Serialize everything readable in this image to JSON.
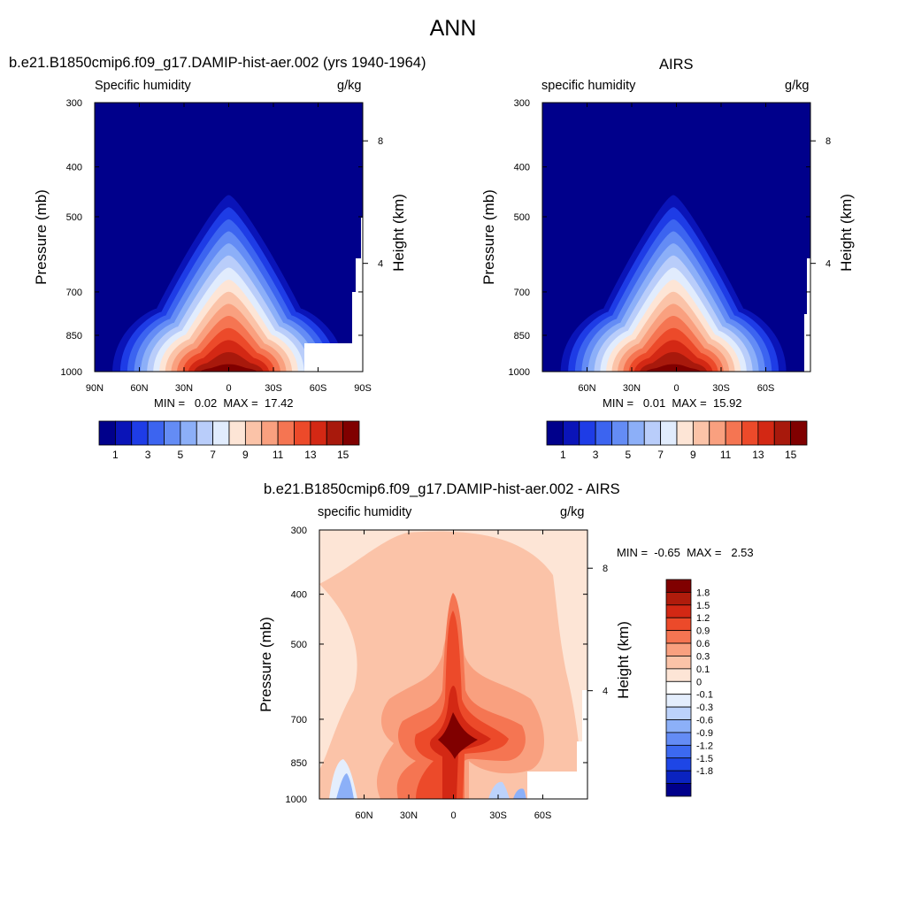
{
  "title": "ANN",
  "panels": [
    {
      "title": "b.e21.B1850cmip6.f09_g17.DAMIP-hist-aer.002 (yrs 1940-1964)",
      "left_label": "Specific humidity",
      "right_label": "g/kg",
      "minmax": "MIN =   0.02  MAX =  17.42"
    },
    {
      "title": "AIRS",
      "left_label": "specific humidity",
      "right_label": "g/kg",
      "minmax": "MIN =   0.01  MAX =  15.92"
    },
    {
      "title": "b.e21.B1850cmip6.f09_g17.DAMIP-hist-aer.002 - AIRS",
      "left_label": "specific humidity",
      "right_label": "g/kg",
      "minmax": "MIN =  -0.65  MAX =   2.53"
    }
  ],
  "axes": {
    "ylabel": "Pressure (mb)",
    "y2label": "Height (km)",
    "pressure_ticks": [
      "300",
      "400",
      "500",
      "700",
      "850",
      "1000"
    ],
    "height_ticks": [
      "8",
      "4"
    ],
    "lat_ticks_full": [
      "90N",
      "60N",
      "30N",
      "0",
      "30S",
      "60S",
      "90S"
    ],
    "lat_ticks_inner": [
      "60N",
      "30N",
      "0",
      "30S",
      "60S"
    ]
  },
  "colorbars": {
    "abs_colors": [
      "#00008b",
      "#0a14b8",
      "#1e3ce6",
      "#3c64f0",
      "#648cf5",
      "#8caff8",
      "#b9cdfa",
      "#e1ecfd",
      "#fde5d6",
      "#fbc3a8",
      "#f9a07f",
      "#f57552",
      "#ec4a2a",
      "#d32814",
      "#a8190c",
      "#800000"
    ],
    "abs_labels": [
      "1",
      "3",
      "5",
      "7",
      "9",
      "11",
      "13",
      "15"
    ],
    "diff_colors": [
      "#00008b",
      "#0a23c0",
      "#1e46e6",
      "#3c69f0",
      "#648cf5",
      "#8cb0f8",
      "#bcd2fb",
      "#e4eefd",
      "#ffffff",
      "#fde5d6",
      "#fbc3a8",
      "#f9a07f",
      "#f57552",
      "#ec4a2a",
      "#d32814",
      "#b01c0c",
      "#800000"
    ],
    "diff_labels": [
      "1.8",
      "1.5",
      "1.2",
      "0.9",
      "0.6",
      "0.3",
      "0.1",
      "0",
      "-0.1",
      "-0.3",
      "-0.6",
      "-0.9",
      "-1.2",
      "-1.5",
      "-1.8"
    ]
  },
  "chart_data": [
    {
      "type": "heatmap",
      "title": "b.e21.B1850cmip6.f09_g17.DAMIP-hist-aer.002 (yrs 1940-1964)",
      "variable": "Specific humidity",
      "units": "g/kg",
      "x_axis": "latitude",
      "xlim": [
        "90N",
        "90S"
      ],
      "y_axis": "pressure (mb)",
      "ylim": [
        1000,
        300
      ],
      "y_scale": "log",
      "contour_levels": [
        1,
        2,
        3,
        4,
        5,
        6,
        7,
        8,
        9,
        10,
        11,
        12,
        13,
        14,
        15
      ],
      "min": 0.02,
      "max": 17.42,
      "peak_latitude_deg": 0,
      "missing_regions": [
        "high southern latitudes near surface"
      ]
    },
    {
      "type": "heatmap",
      "title": "AIRS",
      "variable": "specific humidity",
      "units": "g/kg",
      "x_axis": "latitude",
      "xlim": [
        "90N",
        "90S"
      ],
      "y_axis": "pressure (mb)",
      "ylim": [
        1000,
        300
      ],
      "y_scale": "log",
      "contour_levels": [
        1,
        2,
        3,
        4,
        5,
        6,
        7,
        8,
        9,
        10,
        11,
        12,
        13,
        14,
        15
      ],
      "min": 0.01,
      "max": 15.92,
      "peak_latitude_deg": 0,
      "missing_regions": [
        "southern polar column below 700 mb"
      ]
    },
    {
      "type": "heatmap",
      "title": "b.e21.B1850cmip6.f09_g17.DAMIP-hist-aer.002 - AIRS",
      "variable": "specific humidity",
      "units": "g/kg",
      "x_axis": "latitude",
      "xlim": [
        "90N",
        "90S"
      ],
      "y_axis": "pressure (mb)",
      "ylim": [
        1000,
        300
      ],
      "y_scale": "log",
      "contour_levels": [
        -1.8,
        -1.5,
        -1.2,
        -0.9,
        -0.6,
        -0.3,
        -0.1,
        0,
        0.1,
        0.3,
        0.6,
        0.9,
        1.2,
        1.5,
        1.8
      ],
      "min": -0.65,
      "max": 2.53,
      "max_location": {
        "latitude_deg": 0,
        "pressure_mb": 850
      }
    }
  ]
}
